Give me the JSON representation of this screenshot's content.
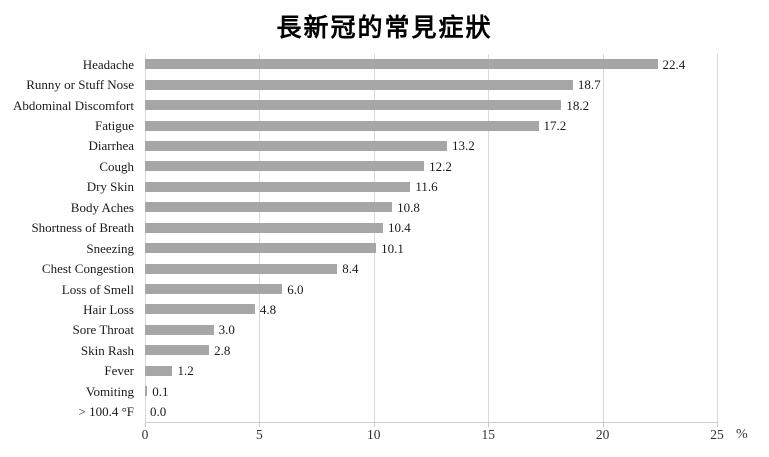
{
  "title": "長新冠的常見症狀",
  "chart_data": {
    "type": "bar",
    "orientation": "horizontal",
    "title": "長新冠的常見症狀",
    "categories": [
      "Headache",
      "Runny or Stuff Nose",
      "Abdominal Discomfort",
      "Fatigue",
      "Diarrhea",
      "Cough",
      "Dry Skin",
      "Body Aches",
      "Shortness of Breath",
      "Sneezing",
      "Chest Congestion",
      "Loss of Smell",
      "Hair Loss",
      "Sore Throat",
      "Skin Rash",
      "Fever",
      "Vomiting",
      "> 100.4 °F"
    ],
    "values": [
      22.4,
      18.7,
      18.2,
      17.2,
      13.2,
      12.2,
      11.6,
      10.8,
      10.4,
      10.1,
      8.4,
      6.0,
      4.8,
      3.0,
      2.8,
      1.2,
      0.1,
      0.0
    ],
    "xlim": [
      0,
      25
    ],
    "x_ticks": [
      0,
      5,
      10,
      15,
      20,
      25
    ],
    "x_unit": "%",
    "grid": "vertical",
    "legend": "none",
    "colors": {
      "bar": "#a6a6a6",
      "gridline": "#d9d9d9",
      "text": "#1a1a1a"
    }
  }
}
